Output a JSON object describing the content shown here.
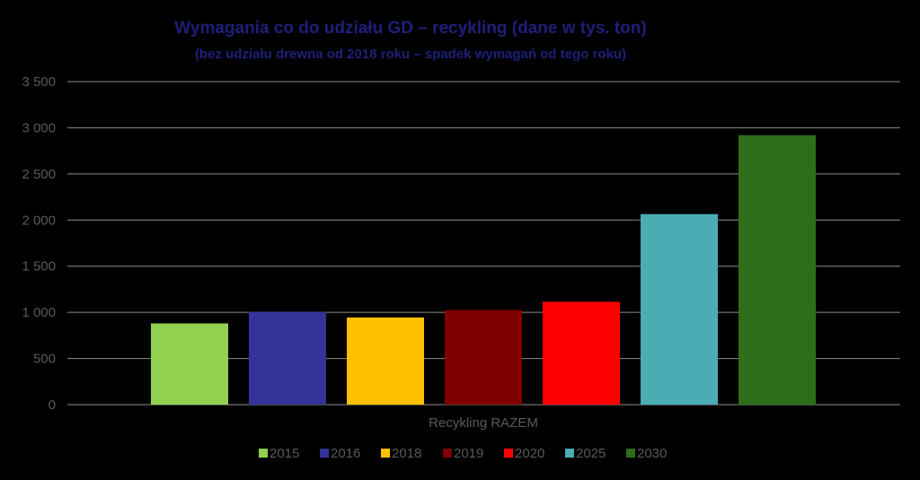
{
  "chart_data": {
    "type": "bar",
    "title": "Wymagania co do udziału GD – recykling (dane w tys. ton)",
    "subtitle": "(bez udziału drewna od 2018 roku – spadek wymagań od tego roku)",
    "categories": [
      "Recykling RAZEM"
    ],
    "series": [
      {
        "name": "2015",
        "values": [
          880
        ],
        "color": "#92d050"
      },
      {
        "name": "2016",
        "values": [
          1005
        ],
        "color": "#333399"
      },
      {
        "name": "2018",
        "values": [
          945
        ],
        "color": "#ffc000"
      },
      {
        "name": "2019",
        "values": [
          1025
        ],
        "color": "#800000"
      },
      {
        "name": "2020",
        "values": [
          1115
        ],
        "color": "#ff0000"
      },
      {
        "name": "2025",
        "values": [
          2065
        ],
        "color": "#4bacb4"
      },
      {
        "name": "2030",
        "values": [
          2920
        ],
        "color": "#2e6e1a"
      }
    ],
    "ylim": [
      0,
      3500
    ],
    "yticks": [
      "0",
      "500",
      "1 000",
      "1 500",
      "2 000",
      "2 500",
      "3 000",
      "3 500"
    ],
    "grid": true,
    "legend": "bottom"
  }
}
